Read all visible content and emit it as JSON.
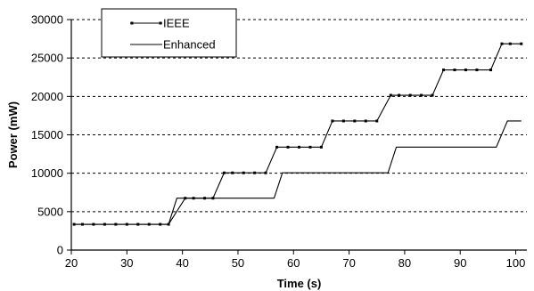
{
  "chart_data": {
    "type": "line",
    "title": "",
    "xlabel": "Time (s)",
    "ylabel": "Power (mW)",
    "xlim": [
      20,
      102
    ],
    "ylim": [
      0,
      30000
    ],
    "xticks": [
      20,
      30,
      40,
      50,
      60,
      70,
      80,
      90,
      100
    ],
    "yticks": [
      0,
      5000,
      10000,
      15000,
      20000,
      25000,
      30000
    ],
    "grid": "horizontal-dashed",
    "legend": "top-left",
    "series": [
      {
        "name": "IEEE",
        "marker": true,
        "x": [
          20.5,
          22,
          24,
          26,
          28,
          30,
          32,
          34,
          36,
          37.5,
          40.5,
          42,
          44,
          45.5,
          47.5,
          49,
          51,
          53,
          55,
          57,
          59,
          61,
          63,
          65,
          67,
          69,
          71,
          73,
          75,
          77.5,
          79,
          81,
          83,
          85,
          87,
          89,
          91,
          93,
          95.5,
          97.5,
          99,
          101
        ],
        "y": [
          3350,
          3350,
          3350,
          3350,
          3350,
          3350,
          3350,
          3350,
          3350,
          3350,
          6750,
          6750,
          6750,
          6750,
          10050,
          10050,
          10050,
          10050,
          10050,
          13400,
          13400,
          13400,
          13400,
          13400,
          16800,
          16800,
          16800,
          16800,
          16800,
          20150,
          20150,
          20150,
          20150,
          20150,
          23450,
          23450,
          23450,
          23450,
          23450,
          26850,
          26850,
          26850
        ]
      },
      {
        "name": "Enhanced",
        "marker": false,
        "x": [
          20.5,
          37.5,
          39,
          56.5,
          58,
          77,
          78.5,
          96.5,
          98.5,
          101
        ],
        "y": [
          3350,
          3350,
          6750,
          6750,
          10050,
          10050,
          13400,
          13400,
          16800,
          16800
        ]
      }
    ]
  }
}
